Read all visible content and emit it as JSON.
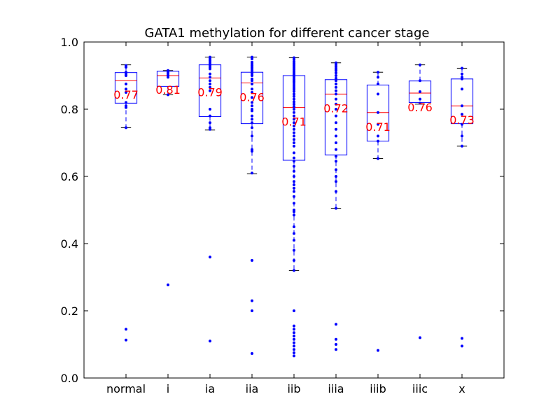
{
  "chart_data": {
    "type": "box",
    "title": "GATA1 methylation for different cancer stage",
    "xlabel": "",
    "ylabel": "",
    "ylim": [
      0.0,
      1.0
    ],
    "yticks": [
      "0.0",
      "0.2",
      "0.4",
      "0.6",
      "0.8",
      "1.0"
    ],
    "grid": false,
    "colors": {
      "box": "#0000ff",
      "median": "#ff0000",
      "whisker": "#0000ff",
      "cap": "#000000",
      "points": "#0000ff",
      "label": "#ff0000"
    },
    "categories": [
      {
        "name": "normal",
        "q1": 0.818,
        "median": 0.885,
        "q3": 0.909,
        "whisker_low": 0.745,
        "whisker_high": 0.932,
        "mean_label": "0.77",
        "points": [
          0.93,
          0.925,
          0.91,
          0.905,
          0.9,
          0.875,
          0.86,
          0.85,
          0.82,
          0.81,
          0.805,
          0.745,
          0.145,
          0.113
        ]
      },
      {
        "name": "i",
        "q1": 0.868,
        "median": 0.9,
        "q3": 0.913,
        "whisker_low": 0.843,
        "whisker_high": 0.915,
        "mean_label": "0.81",
        "points": [
          0.915,
          0.913,
          0.91,
          0.905,
          0.9,
          0.895,
          0.843,
          0.277
        ]
      },
      {
        "name": "ia",
        "q1": 0.778,
        "median": 0.893,
        "q3": 0.932,
        "whisker_low": 0.738,
        "whisker_high": 0.955,
        "mean_label": "0.79",
        "points": [
          0.955,
          0.95,
          0.945,
          0.94,
          0.935,
          0.93,
          0.925,
          0.92,
          0.905,
          0.895,
          0.885,
          0.875,
          0.865,
          0.855,
          0.8,
          0.78,
          0.76,
          0.745,
          0.74,
          0.36,
          0.11
        ]
      },
      {
        "name": "iia",
        "q1": 0.757,
        "median": 0.878,
        "q3": 0.91,
        "whisker_low": 0.608,
        "whisker_high": 0.955,
        "mean_label": "0.76",
        "points": [
          0.955,
          0.95,
          0.94,
          0.935,
          0.93,
          0.925,
          0.92,
          0.915,
          0.91,
          0.905,
          0.9,
          0.89,
          0.885,
          0.875,
          0.86,
          0.85,
          0.835,
          0.82,
          0.81,
          0.8,
          0.795,
          0.78,
          0.77,
          0.76,
          0.745,
          0.72,
          0.68,
          0.675,
          0.61,
          0.35,
          0.23,
          0.2,
          0.073
        ]
      },
      {
        "name": "iib",
        "q1": 0.648,
        "median": 0.805,
        "q3": 0.9,
        "whisker_low": 0.32,
        "whisker_high": 0.953,
        "mean_label": "0.71",
        "points": [
          0.953,
          0.948,
          0.942,
          0.937,
          0.932,
          0.928,
          0.923,
          0.918,
          0.913,
          0.908,
          0.903,
          0.898,
          0.893,
          0.888,
          0.883,
          0.878,
          0.872,
          0.866,
          0.86,
          0.853,
          0.845,
          0.838,
          0.83,
          0.822,
          0.815,
          0.808,
          0.8,
          0.79,
          0.78,
          0.77,
          0.76,
          0.75,
          0.74,
          0.73,
          0.72,
          0.71,
          0.7,
          0.69,
          0.67,
          0.655,
          0.645,
          0.63,
          0.615,
          0.6,
          0.585,
          0.575,
          0.565,
          0.555,
          0.54,
          0.52,
          0.5,
          0.495,
          0.485,
          0.45,
          0.43,
          0.41,
          0.38,
          0.35,
          0.32,
          0.2,
          0.155,
          0.145,
          0.135,
          0.125,
          0.115,
          0.105,
          0.095,
          0.085,
          0.075,
          0.066
        ]
      },
      {
        "name": "iiia",
        "q1": 0.664,
        "median": 0.845,
        "q3": 0.888,
        "whisker_low": 0.505,
        "whisker_high": 0.938,
        "mean_label": "0.72",
        "points": [
          0.938,
          0.932,
          0.926,
          0.92,
          0.915,
          0.908,
          0.9,
          0.892,
          0.885,
          0.875,
          0.865,
          0.855,
          0.845,
          0.83,
          0.815,
          0.8,
          0.78,
          0.76,
          0.74,
          0.72,
          0.7,
          0.68,
          0.66,
          0.645,
          0.62,
          0.6,
          0.585,
          0.555,
          0.505,
          0.16,
          0.115,
          0.1,
          0.085
        ]
      },
      {
        "name": "iiib",
        "q1": 0.705,
        "median": 0.79,
        "q3": 0.872,
        "whisker_low": 0.653,
        "whisker_high": 0.91,
        "mean_label": "0.71",
        "points": [
          0.91,
          0.895,
          0.875,
          0.845,
          0.79,
          0.755,
          0.72,
          0.705,
          0.653,
          0.082
        ]
      },
      {
        "name": "iiic",
        "q1": 0.82,
        "median": 0.848,
        "q3": 0.884,
        "whisker_low": 0.815,
        "whisker_high": 0.932,
        "mean_label": "0.76",
        "points": [
          0.932,
          0.885,
          0.852,
          0.83,
          0.818,
          0.12
        ]
      },
      {
        "name": "x",
        "q1": 0.757,
        "median": 0.81,
        "q3": 0.89,
        "whisker_low": 0.69,
        "whisker_high": 0.922,
        "mean_label": "0.73",
        "points": [
          0.922,
          0.905,
          0.895,
          0.89,
          0.86,
          0.81,
          0.785,
          0.755,
          0.72,
          0.69,
          0.118,
          0.095
        ]
      }
    ]
  }
}
